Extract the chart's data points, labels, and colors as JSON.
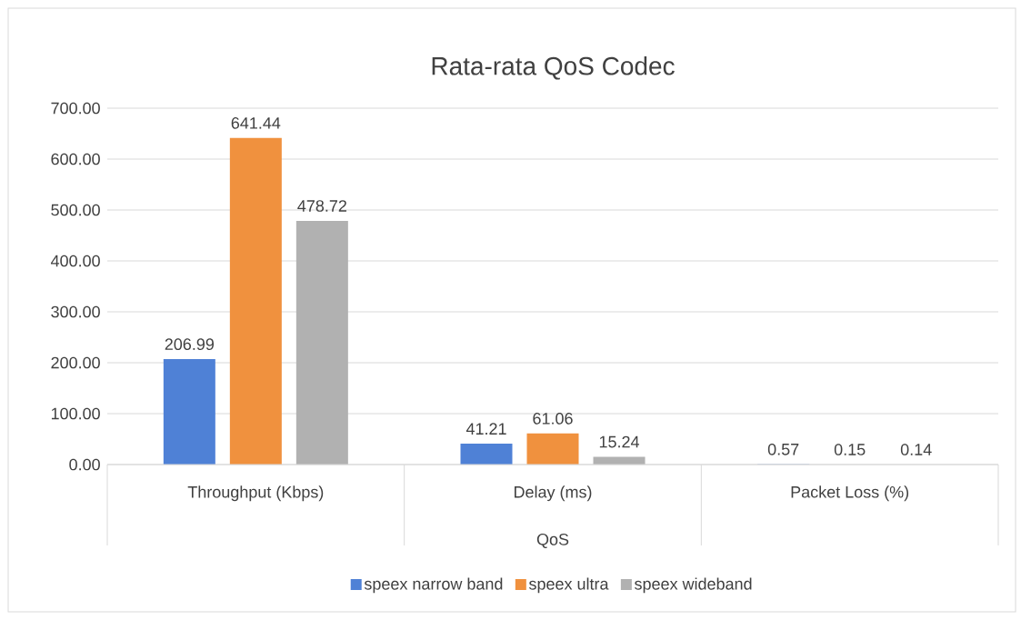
{
  "chart_data": {
    "type": "bar",
    "title": "Rata-rata QoS Codec",
    "xlabel": "QoS",
    "categories": [
      "Throughput (Kbps)",
      "Delay (ms)",
      "Packet Loss (%)"
    ],
    "series": [
      {
        "name": "speex narrow band",
        "color": "#4f81d6",
        "values": [
          206.99,
          41.21,
          0.57
        ]
      },
      {
        "name": "speex ultra",
        "color": "#f0913e",
        "values": [
          641.44,
          61.06,
          0.15
        ]
      },
      {
        "name": "speex wideband",
        "color": "#b1b1b1",
        "values": [
          478.72,
          15.24,
          0.14
        ]
      }
    ],
    "ylim": [
      0,
      700
    ],
    "yticks": [
      {
        "value": 0,
        "label": "0.00"
      },
      {
        "value": 100,
        "label": "100.00"
      },
      {
        "value": 200,
        "label": "200.00"
      },
      {
        "value": 300,
        "label": "300.00"
      },
      {
        "value": 400,
        "label": "400.00"
      },
      {
        "value": 500,
        "label": "500.00"
      },
      {
        "value": 600,
        "label": "600.00"
      },
      {
        "value": 700,
        "label": "700.00"
      }
    ],
    "grid": "y",
    "legend": "bottom",
    "data_labels": true
  }
}
